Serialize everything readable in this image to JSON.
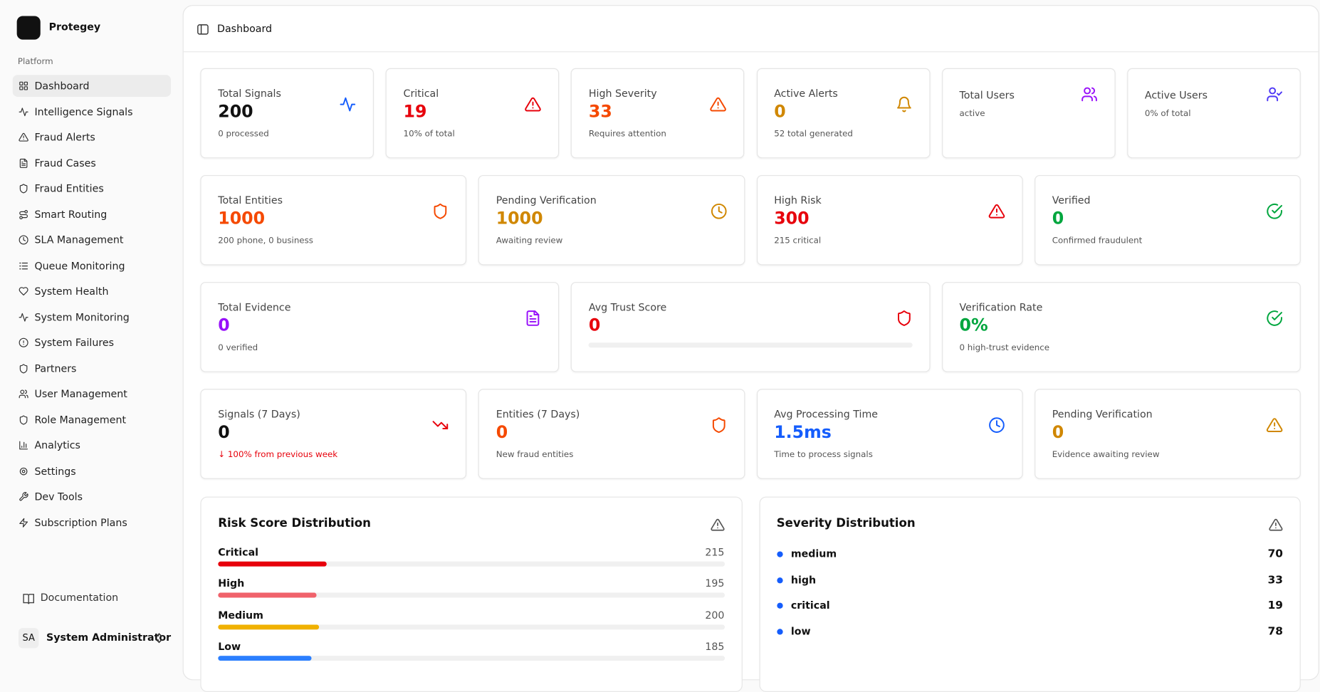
{
  "app": {
    "name": "Protegey"
  },
  "sidebar": {
    "section": "Platform",
    "items": [
      "Dashboard",
      "Intelligence Signals",
      "Fraud Alerts",
      "Fraud Cases",
      "Fraud Entities",
      "Smart Routing",
      "SLA Management",
      "Queue Monitoring",
      "System Health",
      "System Monitoring",
      "System Failures",
      "Partners",
      "User Management",
      "Role Management",
      "Analytics",
      "Settings",
      "Dev Tools",
      "Subscription Plans"
    ],
    "footer": "Documentation",
    "user": {
      "initials": "SA",
      "name": "System Administrator"
    }
  },
  "header": {
    "title": "Dashboard"
  },
  "stat_rows": [
    [
      {
        "label": "Total Signals",
        "value": 200,
        "note": "0 processed",
        "color": "#111111",
        "icon_color": "#155dfc"
      },
      {
        "label": "Critical",
        "value": 19,
        "note": "10% of total",
        "color": "#e7000b",
        "icon_color": "#e7000b"
      },
      {
        "label": "High Severity",
        "value": 33,
        "note": "Requires attention",
        "color": "#f54900",
        "icon_color": "#f54900"
      },
      {
        "label": "Active Alerts",
        "value": 0,
        "note": "52 total generated",
        "color": "#d08700",
        "icon_color": "#d08700"
      },
      {
        "label": "Total Users",
        "note": "active",
        "icon_color": "#9810fa"
      },
      {
        "label": "Active Users",
        "note": "0% of total",
        "icon_color": "#4f39f6"
      }
    ],
    [
      {
        "label": "Total Entities",
        "value": 1000,
        "note": "200 phone, 0 business",
        "color": "#f54900",
        "icon_color": "#f54900"
      },
      {
        "label": "Pending Verification",
        "value": 1000,
        "note": "Awaiting review",
        "color": "#d08700",
        "icon_color": "#d08700"
      },
      {
        "label": "High Risk",
        "value": 300,
        "note": "215 critical",
        "color": "#e7000b",
        "icon_color": "#e7000b"
      },
      {
        "label": "Verified",
        "value": 0,
        "note": "Confirmed fraudulent",
        "color": "#00a63e",
        "icon_color": "#00a63e"
      }
    ],
    [
      {
        "label": "Total Evidence",
        "value": 0,
        "note": "0 verified",
        "color": "#9810fa",
        "icon_color": "#9810fa"
      },
      {
        "label": "Avg Trust Score",
        "value": 0,
        "progress": true,
        "color": "#e7000b",
        "icon_color": "#e7000b"
      },
      {
        "label": "Verification Rate",
        "value": "0%",
        "note": "0 high-trust evidence",
        "color": "#00a63e",
        "icon_color": "#00a63e"
      }
    ],
    [
      {
        "label": "Signals (7 Days)",
        "value": 0,
        "note": "↓ 100% from previous week",
        "note_color": "#e7000b",
        "color": "#111111",
        "icon_color": "#e7000b"
      },
      {
        "label": "Entities (7 Days)",
        "value": 0,
        "note": "New fraud entities",
        "color": "#f54900",
        "icon_color": "#f54900"
      },
      {
        "label": "Avg Processing Time",
        "value": "1.5ms",
        "note": "Time to process signals",
        "color": "#155dfc",
        "icon_color": "#155dfc"
      },
      {
        "label": "Pending Verification",
        "value": 0,
        "note": "Evidence awaiting review",
        "color": "#d08700",
        "icon_color": "#d08700"
      }
    ]
  ],
  "risk_distribution": {
    "title": "Risk Score Distribution",
    "items": [
      {
        "name": "Critical",
        "value": 215,
        "color": "#e7000b"
      },
      {
        "name": "High",
        "value": 195,
        "color": "#f0626b"
      },
      {
        "name": "Medium",
        "value": 200,
        "color": "#f0b100"
      },
      {
        "name": "Low",
        "value": 185,
        "color": "#2b7fff"
      }
    ]
  },
  "severity_distribution": {
    "title": "Severity Distribution",
    "color": "#155dfc",
    "items": [
      {
        "name": "medium",
        "value": 70
      },
      {
        "name": "high",
        "value": 33
      },
      {
        "name": "critical",
        "value": 19
      },
      {
        "name": "low",
        "value": 78
      }
    ]
  }
}
